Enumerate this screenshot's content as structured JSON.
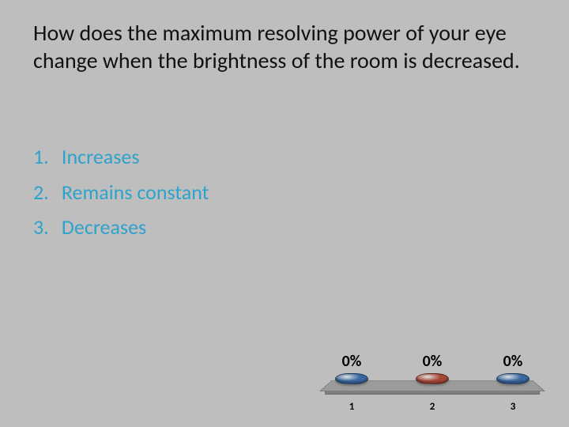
{
  "question": "How does the maximum resolving power of your eye change when the brightness of the room is decreased.",
  "options": [
    {
      "num": "1.",
      "text": "Increases"
    },
    {
      "num": "2.",
      "text": "Remains constant"
    },
    {
      "num": "3.",
      "text": "Decreases"
    }
  ],
  "option_color": "#2da2cc",
  "chart": {
    "type": "bar",
    "platform_top_color": "#9b9b9b",
    "platform_border_color": "#6c6c6c",
    "pill_colors": [
      "#39679f",
      "#a44636",
      "#39679f"
    ],
    "percent_labels": [
      "0%",
      "0%",
      "0%"
    ],
    "x_labels": [
      "1",
      "2",
      "3"
    ],
    "percent_font_size": 20,
    "label_font_size": 13,
    "background_color": "#bfbebe"
  }
}
